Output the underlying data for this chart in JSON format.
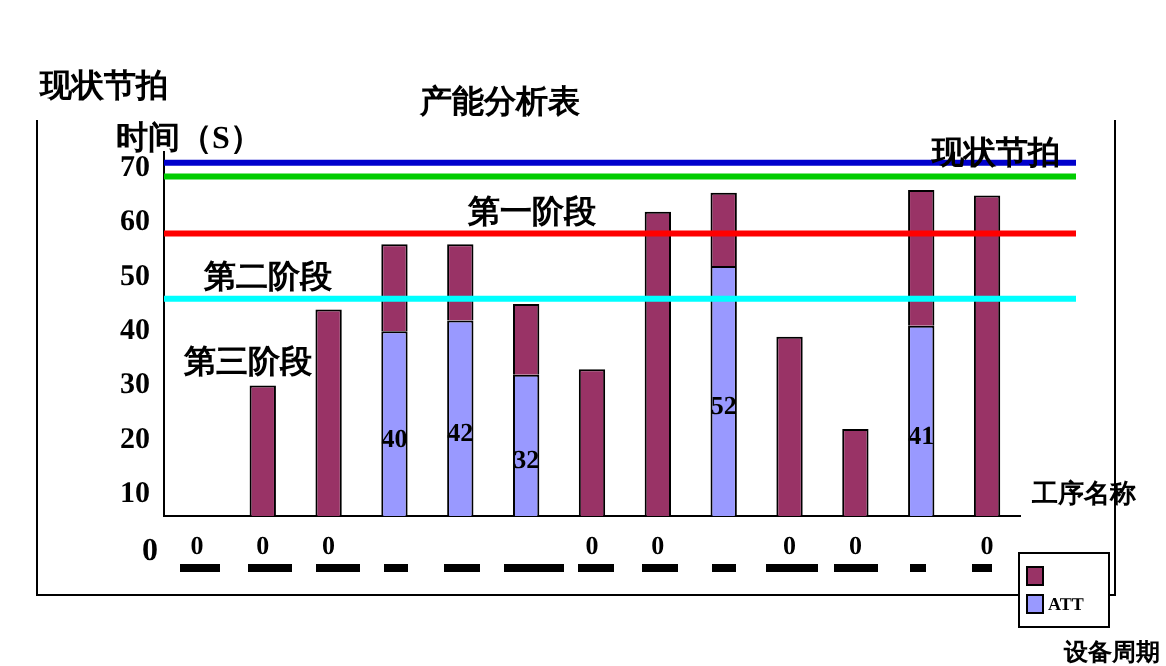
{
  "chart_data": {
    "type": "bar",
    "title": "产能分析表",
    "ylabel": "时间（S）",
    "xlabel": "工序名称",
    "stacked": true,
    "categories": [
      "0",
      "0",
      "0",
      null,
      null,
      null,
      "0",
      "0",
      null,
      "0",
      "0",
      null,
      "0"
    ],
    "series": [
      {
        "color": "#9999ff",
        "name": "ATT",
        "values": [
          null,
          null,
          null,
          40,
          42,
          32,
          null,
          null,
          52,
          null,
          null,
          41,
          null
        ],
        "value_labels": [
          null,
          null,
          null,
          "40",
          "42",
          "32",
          null,
          null,
          "52",
          null,
          null,
          "41",
          null
        ]
      },
      {
        "color": "#993366",
        "values": [
          null,
          30,
          44,
          16,
          14,
          13,
          33,
          62,
          13.5,
          39,
          22,
          25,
          65
        ]
      }
    ],
    "ylim": [
      6,
      73
    ],
    "yticks": [
      10,
      20,
      30,
      40,
      50,
      60,
      70
    ],
    "ref_lines": [
      {
        "axis": "y",
        "value": 71,
        "label": "现状节拍",
        "color": "#0000cc"
      },
      {
        "axis": "y",
        "value": 68.5,
        "label": null,
        "color": "#00cc00"
      },
      {
        "axis": "y",
        "value": 58,
        "label": "第一阶段",
        "color": "#ff0000"
      },
      {
        "axis": "y",
        "value": 46,
        "label": "第二阶段",
        "color": "#00ffff"
      }
    ],
    "annotations": [
      "现状节拍",
      "第三阶段",
      "0",
      "设备周期"
    ],
    "legend": "bottom right"
  }
}
